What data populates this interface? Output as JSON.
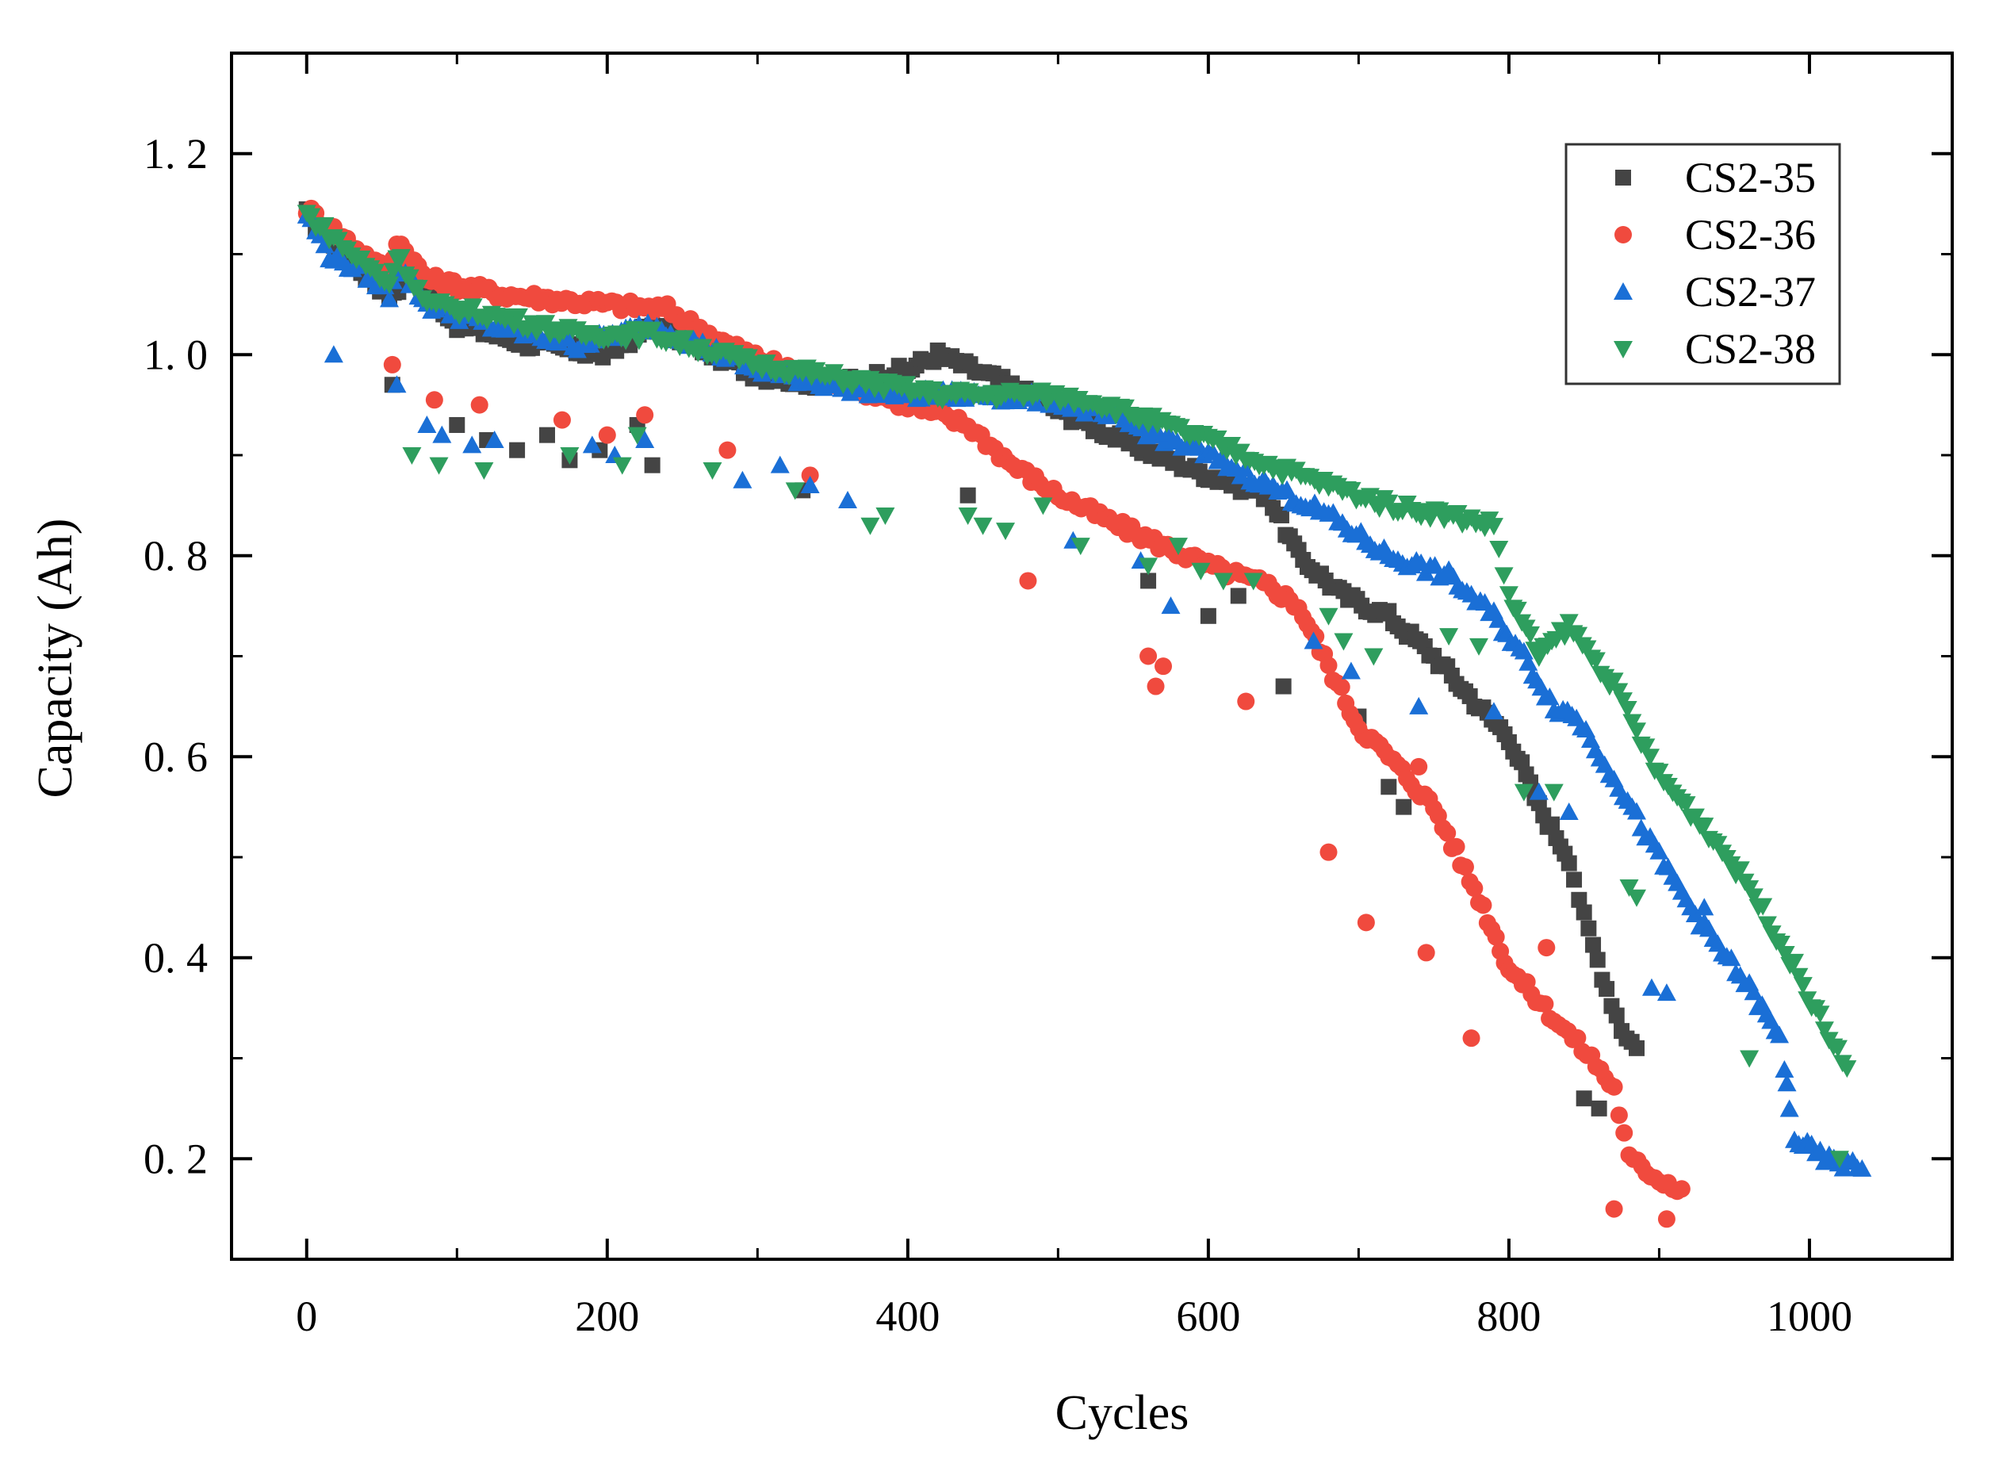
{
  "chart_data": {
    "type": "scatter",
    "title": "",
    "xlabel": "Cycles",
    "ylabel": "Capacity (Ah)",
    "xlim": [
      -50,
      1095
    ],
    "ylim": [
      0.1,
      1.3
    ],
    "xticks": [
      0,
      200,
      400,
      600,
      800,
      1000
    ],
    "xtick_labels": [
      "0",
      "200",
      "400",
      "600",
      "800",
      "1000"
    ],
    "yticks": [
      0.2,
      0.4,
      0.6,
      0.8,
      1.0,
      1.2
    ],
    "ytick_labels": [
      "0. 2",
      "0. 4",
      "0. 6",
      "0. 8",
      "1. 0",
      "1. 2"
    ],
    "legend_position": "top-right",
    "series": [
      {
        "name": "CS2-35",
        "marker": "square",
        "color": "#444444",
        "trend": [
          [
            0,
            1.14
          ],
          [
            30,
            1.09
          ],
          [
            55,
            1.06
          ],
          [
            70,
            1.08
          ],
          [
            100,
            1.03
          ],
          [
            150,
            1.01
          ],
          [
            200,
            1.0
          ],
          [
            230,
            1.03
          ],
          [
            300,
            0.98
          ],
          [
            350,
            0.97
          ],
          [
            400,
            0.985
          ],
          [
            420,
            1.0
          ],
          [
            460,
            0.975
          ],
          [
            500,
            0.945
          ],
          [
            550,
            0.91
          ],
          [
            600,
            0.88
          ],
          [
            640,
            0.86
          ],
          [
            660,
            0.8
          ],
          [
            690,
            0.76
          ],
          [
            720,
            0.74
          ],
          [
            750,
            0.7
          ],
          [
            780,
            0.65
          ],
          [
            800,
            0.62
          ],
          [
            820,
            0.55
          ],
          [
            840,
            0.5
          ],
          [
            850,
            0.44
          ],
          [
            865,
            0.37
          ],
          [
            875,
            0.33
          ],
          [
            885,
            0.31
          ]
        ],
        "outliers": [
          [
            57,
            0.97
          ],
          [
            100,
            0.93
          ],
          [
            120,
            0.915
          ],
          [
            140,
            0.905
          ],
          [
            160,
            0.92
          ],
          [
            175,
            0.895
          ],
          [
            195,
            0.905
          ],
          [
            220,
            0.93
          ],
          [
            230,
            0.89
          ],
          [
            330,
            0.865
          ],
          [
            440,
            0.86
          ],
          [
            560,
            0.775
          ],
          [
            600,
            0.74
          ],
          [
            620,
            0.76
          ],
          [
            650,
            0.67
          ],
          [
            700,
            0.64
          ],
          [
            720,
            0.57
          ],
          [
            730,
            0.55
          ],
          [
            850,
            0.26
          ],
          [
            860,
            0.25
          ]
        ]
      },
      {
        "name": "CS2-36",
        "marker": "circle",
        "color": "#f04a3e",
        "trend": [
          [
            0,
            1.145
          ],
          [
            30,
            1.11
          ],
          [
            55,
            1.08
          ],
          [
            60,
            1.115
          ],
          [
            80,
            1.075
          ],
          [
            130,
            1.06
          ],
          [
            200,
            1.05
          ],
          [
            240,
            1.045
          ],
          [
            280,
            1.01
          ],
          [
            320,
            0.985
          ],
          [
            360,
            0.97
          ],
          [
            400,
            0.95
          ],
          [
            440,
            0.93
          ],
          [
            470,
            0.89
          ],
          [
            500,
            0.86
          ],
          [
            540,
            0.83
          ],
          [
            570,
            0.81
          ],
          [
            600,
            0.79
          ],
          [
            640,
            0.77
          ],
          [
            660,
            0.75
          ],
          [
            680,
            0.69
          ],
          [
            700,
            0.63
          ],
          [
            720,
            0.6
          ],
          [
            750,
            0.55
          ],
          [
            780,
            0.46
          ],
          [
            800,
            0.39
          ],
          [
            830,
            0.34
          ],
          [
            855,
            0.3
          ],
          [
            870,
            0.27
          ],
          [
            880,
            0.2
          ],
          [
            900,
            0.18
          ],
          [
            915,
            0.17
          ]
        ],
        "outliers": [
          [
            57,
            0.99
          ],
          [
            85,
            0.955
          ],
          [
            115,
            0.95
          ],
          [
            170,
            0.935
          ],
          [
            200,
            0.92
          ],
          [
            225,
            0.94
          ],
          [
            280,
            0.905
          ],
          [
            335,
            0.88
          ],
          [
            480,
            0.775
          ],
          [
            560,
            0.7
          ],
          [
            565,
            0.67
          ],
          [
            570,
            0.69
          ],
          [
            625,
            0.655
          ],
          [
            680,
            0.505
          ],
          [
            705,
            0.435
          ],
          [
            740,
            0.59
          ],
          [
            745,
            0.405
          ],
          [
            775,
            0.32
          ],
          [
            825,
            0.41
          ],
          [
            870,
            0.15
          ],
          [
            905,
            0.14
          ]
        ]
      },
      {
        "name": "CS2-37",
        "marker": "triangle-up",
        "color": "#1a6fd6",
        "trend": [
          [
            0,
            1.14
          ],
          [
            15,
            1.1
          ],
          [
            40,
            1.08
          ],
          [
            55,
            1.06
          ],
          [
            60,
            1.09
          ],
          [
            80,
            1.05
          ],
          [
            120,
            1.03
          ],
          [
            180,
            1.01
          ],
          [
            230,
            1.03
          ],
          [
            300,
            0.985
          ],
          [
            350,
            0.97
          ],
          [
            400,
            0.96
          ],
          [
            450,
            0.96
          ],
          [
            500,
            0.955
          ],
          [
            550,
            0.93
          ],
          [
            600,
            0.9
          ],
          [
            640,
            0.87
          ],
          [
            680,
            0.84
          ],
          [
            720,
            0.8
          ],
          [
            760,
            0.78
          ],
          [
            790,
            0.74
          ],
          [
            810,
            0.7
          ],
          [
            830,
            0.65
          ],
          [
            845,
            0.64
          ],
          [
            870,
            0.58
          ],
          [
            900,
            0.5
          ],
          [
            930,
            0.43
          ],
          [
            960,
            0.37
          ],
          [
            980,
            0.32
          ],
          [
            990,
            0.22
          ],
          [
            1010,
            0.2
          ],
          [
            1035,
            0.19
          ]
        ],
        "outliers": [
          [
            18,
            1.0
          ],
          [
            60,
            0.97
          ],
          [
            80,
            0.93
          ],
          [
            90,
            0.92
          ],
          [
            110,
            0.91
          ],
          [
            125,
            0.915
          ],
          [
            190,
            0.91
          ],
          [
            205,
            0.9
          ],
          [
            225,
            0.915
          ],
          [
            290,
            0.875
          ],
          [
            315,
            0.89
          ],
          [
            335,
            0.87
          ],
          [
            360,
            0.855
          ],
          [
            510,
            0.815
          ],
          [
            555,
            0.795
          ],
          [
            575,
            0.75
          ],
          [
            670,
            0.715
          ],
          [
            695,
            0.685
          ],
          [
            740,
            0.65
          ],
          [
            790,
            0.645
          ],
          [
            820,
            0.565
          ],
          [
            840,
            0.545
          ],
          [
            895,
            0.37
          ],
          [
            905,
            0.365
          ],
          [
            930,
            0.45
          ],
          [
            985,
            0.275
          ]
        ]
      },
      {
        "name": "CS2-38",
        "marker": "triangle-down",
        "color": "#2e9e5e",
        "trend": [
          [
            0,
            1.14
          ],
          [
            30,
            1.1
          ],
          [
            55,
            1.07
          ],
          [
            60,
            1.1
          ],
          [
            80,
            1.05
          ],
          [
            120,
            1.04
          ],
          [
            180,
            1.02
          ],
          [
            230,
            1.02
          ],
          [
            300,
            0.99
          ],
          [
            360,
            0.975
          ],
          [
            420,
            0.96
          ],
          [
            480,
            0.96
          ],
          [
            520,
            0.955
          ],
          [
            560,
            0.935
          ],
          [
            600,
            0.915
          ],
          [
            640,
            0.89
          ],
          [
            680,
            0.87
          ],
          [
            720,
            0.85
          ],
          [
            760,
            0.84
          ],
          [
            790,
            0.83
          ],
          [
            800,
            0.76
          ],
          [
            820,
            0.7
          ],
          [
            840,
            0.73
          ],
          [
            870,
            0.67
          ],
          [
            900,
            0.58
          ],
          [
            930,
            0.53
          ],
          [
            960,
            0.47
          ],
          [
            990,
            0.39
          ],
          [
            1010,
            0.33
          ],
          [
            1025,
            0.29
          ]
        ],
        "outliers": [
          [
            70,
            0.9
          ],
          [
            88,
            0.89
          ],
          [
            118,
            0.885
          ],
          [
            175,
            0.9
          ],
          [
            210,
            0.89
          ],
          [
            220,
            0.92
          ],
          [
            270,
            0.885
          ],
          [
            325,
            0.865
          ],
          [
            375,
            0.83
          ],
          [
            385,
            0.84
          ],
          [
            440,
            0.84
          ],
          [
            450,
            0.83
          ],
          [
            465,
            0.825
          ],
          [
            490,
            0.85
          ],
          [
            515,
            0.81
          ],
          [
            560,
            0.79
          ],
          [
            580,
            0.81
          ],
          [
            595,
            0.785
          ],
          [
            610,
            0.775
          ],
          [
            630,
            0.775
          ],
          [
            680,
            0.74
          ],
          [
            690,
            0.715
          ],
          [
            710,
            0.7
          ],
          [
            760,
            0.72
          ],
          [
            780,
            0.71
          ],
          [
            810,
            0.565
          ],
          [
            830,
            0.565
          ],
          [
            880,
            0.47
          ],
          [
            885,
            0.46
          ],
          [
            960,
            0.3
          ],
          [
            1020,
            0.2
          ]
        ]
      }
    ]
  }
}
